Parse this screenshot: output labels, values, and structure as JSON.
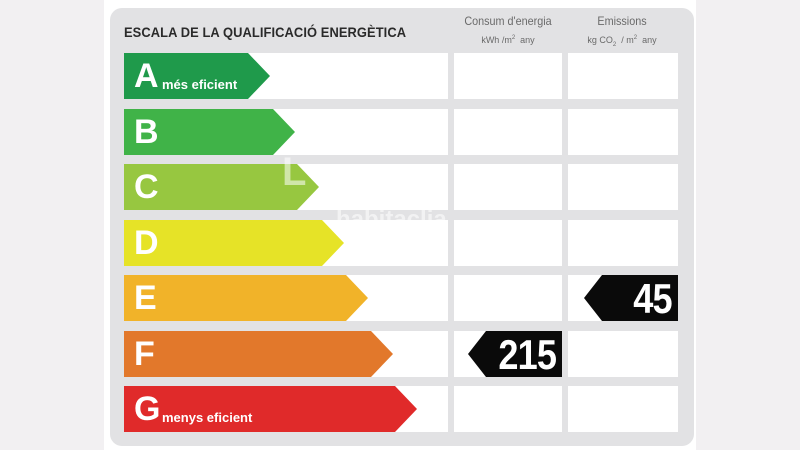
{
  "title": "ESCALA DE LA QUALIFICACIÓ ENERGÈTICA",
  "columns": {
    "consumption": {
      "label": "Consum d'energia",
      "unit_text": "kWh /m",
      "unit_exp": "2",
      "unit_tail": "  any"
    },
    "emissions": {
      "label": "Emissions",
      "unit_text": "kg CO",
      "unit_sub": "2",
      "unit_mid": "  / m",
      "unit_exp": "2",
      "unit_tail": "  any"
    }
  },
  "bands": [
    {
      "letter": "A",
      "note": "més eficient",
      "color": "#1f9a4b"
    },
    {
      "letter": "B",
      "note": "",
      "color": "#40b348"
    },
    {
      "letter": "C",
      "note": "",
      "color": "#97c740"
    },
    {
      "letter": "D",
      "note": "",
      "color": "#e6e327"
    },
    {
      "letter": "E",
      "note": "",
      "color": "#f1b329"
    },
    {
      "letter": "F",
      "note": "",
      "color": "#e2782b"
    },
    {
      "letter": "G",
      "note": "menys eficient",
      "color": "#e02a2a"
    }
  ],
  "consumption_rating": {
    "letter": "F",
    "value": "215"
  },
  "emissions_rating": {
    "letter": "E",
    "value": "45"
  },
  "watermark": {
    "line1": "L",
    "line2": "habitaclia"
  }
}
